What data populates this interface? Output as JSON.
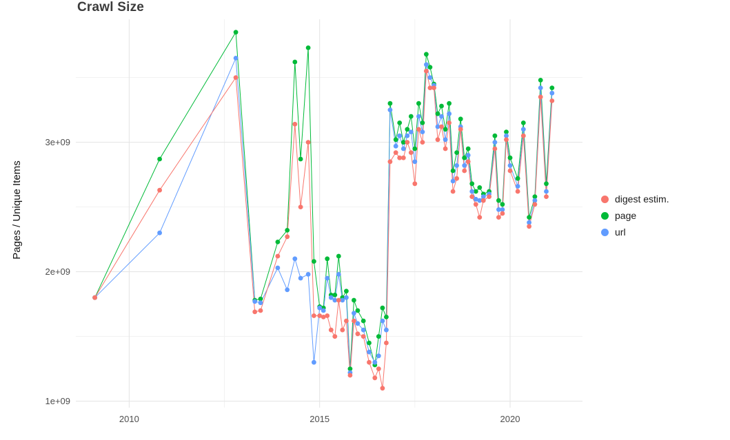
{
  "title": "Crawl Size",
  "ylabel": "Pages / Unique Items",
  "colors": {
    "digest": "#F8766D",
    "page": "#00BA38",
    "url": "#619CFF",
    "grid_major": "#e3e3e3",
    "grid_minor": "#f1f1f1",
    "tick_label": "#4d4d4d",
    "background": "#ffffff"
  },
  "chart_data": {
    "type": "line",
    "title": "Crawl Size",
    "xlabel": "",
    "ylabel": "Pages / Unique Items",
    "legend_position": "right",
    "grid": true,
    "xlim": [
      2008.6,
      2021.9
    ],
    "ylim": [
      950000000.0,
      3950000000.0
    ],
    "x_ticks": [
      2010,
      2015,
      2020
    ],
    "x_tick_labels": [
      "2010",
      "2015",
      "2020"
    ],
    "x_minor_ticks": [
      2012.5,
      2017.5
    ],
    "y_ticks": [
      1000000000.0,
      2000000000.0,
      3000000000.0
    ],
    "y_tick_labels": [
      "1e+09",
      "2e+09",
      "3e+09"
    ],
    "y_minor_ticks": [
      1500000000.0,
      2500000000.0,
      3500000000.0
    ],
    "x": [
      2009.1,
      2010.8,
      2012.8,
      2013.3,
      2013.45,
      2013.9,
      2014.15,
      2014.35,
      2014.5,
      2014.7,
      2014.85,
      2015.0,
      2015.1,
      2015.2,
      2015.3,
      2015.4,
      2015.5,
      2015.6,
      2015.7,
      2015.8,
      2015.9,
      2016.0,
      2016.15,
      2016.3,
      2016.45,
      2016.55,
      2016.65,
      2016.75,
      2016.85,
      2017.0,
      2017.1,
      2017.2,
      2017.3,
      2017.4,
      2017.5,
      2017.6,
      2017.7,
      2017.8,
      2017.9,
      2018.0,
      2018.1,
      2018.2,
      2018.3,
      2018.4,
      2018.5,
      2018.6,
      2018.7,
      2018.8,
      2018.9,
      2019.0,
      2019.1,
      2019.2,
      2019.3,
      2019.45,
      2019.6,
      2019.7,
      2019.8,
      2019.9,
      2020.0,
      2020.2,
      2020.35,
      2020.5,
      2020.65,
      2020.8,
      2020.95,
      2021.1
    ],
    "series": [
      {
        "name": "digest estim.",
        "color": "#F8766D",
        "values": [
          1800000000.0,
          2630000000.0,
          3500000000.0,
          1690000000.0,
          1700000000.0,
          2120000000.0,
          2270000000.0,
          3140000000.0,
          2500000000.0,
          3000000000.0,
          1660000000.0,
          1660000000.0,
          1650000000.0,
          1660000000.0,
          1550000000.0,
          1500000000.0,
          1780000000.0,
          1550000000.0,
          1620000000.0,
          1200000000.0,
          1620000000.0,
          1520000000.0,
          1500000000.0,
          1300000000.0,
          1180000000.0,
          1250000000.0,
          1100000000.0,
          1450000000.0,
          2850000000.0,
          2920000000.0,
          2880000000.0,
          2880000000.0,
          3000000000.0,
          2920000000.0,
          2680000000.0,
          3100000000.0,
          3000000000.0,
          3550000000.0,
          3420000000.0,
          3420000000.0,
          3020000000.0,
          3120000000.0,
          2950000000.0,
          3150000000.0,
          2620000000.0,
          2720000000.0,
          3100000000.0,
          2780000000.0,
          2850000000.0,
          2580000000.0,
          2520000000.0,
          2420000000.0,
          2550000000.0,
          2580000000.0,
          2950000000.0,
          2420000000.0,
          2450000000.0,
          3020000000.0,
          2780000000.0,
          2620000000.0,
          3050000000.0,
          2350000000.0,
          2520000000.0,
          3350000000.0,
          2580000000.0,
          3320000000.0
        ]
      },
      {
        "name": "page",
        "color": "#00BA38",
        "values": [
          1800000000.0,
          2870000000.0,
          3850000000.0,
          1780000000.0,
          1790000000.0,
          2230000000.0,
          2320000000.0,
          3620000000.0,
          2870000000.0,
          3730000000.0,
          2080000000.0,
          1730000000.0,
          1720000000.0,
          2100000000.0,
          1820000000.0,
          1820000000.0,
          2120000000.0,
          1800000000.0,
          1850000000.0,
          1250000000.0,
          1780000000.0,
          1700000000.0,
          1620000000.0,
          1450000000.0,
          1280000000.0,
          1500000000.0,
          1720000000.0,
          1650000000.0,
          3300000000.0,
          3020000000.0,
          3150000000.0,
          3000000000.0,
          3100000000.0,
          3200000000.0,
          2950000000.0,
          3300000000.0,
          3150000000.0,
          3680000000.0,
          3580000000.0,
          3450000000.0,
          3220000000.0,
          3280000000.0,
          3100000000.0,
          3300000000.0,
          2780000000.0,
          2920000000.0,
          3180000000.0,
          2880000000.0,
          2950000000.0,
          2680000000.0,
          2620000000.0,
          2650000000.0,
          2600000000.0,
          2620000000.0,
          3050000000.0,
          2550000000.0,
          2520000000.0,
          3080000000.0,
          2880000000.0,
          2720000000.0,
          3150000000.0,
          2420000000.0,
          2580000000.0,
          3480000000.0,
          2680000000.0,
          3420000000.0
        ]
      },
      {
        "name": "url",
        "color": "#619CFF",
        "values": [
          1800000000.0,
          2300000000.0,
          3650000000.0,
          1770000000.0,
          1760000000.0,
          2030000000.0,
          1860000000.0,
          2100000000.0,
          1950000000.0,
          1980000000.0,
          1300000000.0,
          1720000000.0,
          1700000000.0,
          1950000000.0,
          1800000000.0,
          1780000000.0,
          1980000000.0,
          1780000000.0,
          1800000000.0,
          1220000000.0,
          1680000000.0,
          1600000000.0,
          1550000000.0,
          1380000000.0,
          1300000000.0,
          1350000000.0,
          1620000000.0,
          1550000000.0,
          3250000000.0,
          2970000000.0,
          3050000000.0,
          2950000000.0,
          3050000000.0,
          3080000000.0,
          2850000000.0,
          3200000000.0,
          3080000000.0,
          3600000000.0,
          3500000000.0,
          3440000000.0,
          3120000000.0,
          3200000000.0,
          3020000000.0,
          3220000000.0,
          2700000000.0,
          2820000000.0,
          3120000000.0,
          2820000000.0,
          2900000000.0,
          2620000000.0,
          2560000000.0,
          2550000000.0,
          2580000000.0,
          2600000000.0,
          3000000000.0,
          2480000000.0,
          2480000000.0,
          3050000000.0,
          2820000000.0,
          2660000000.0,
          3100000000.0,
          2380000000.0,
          2550000000.0,
          3420000000.0,
          2620000000.0,
          3380000000.0
        ]
      }
    ]
  }
}
